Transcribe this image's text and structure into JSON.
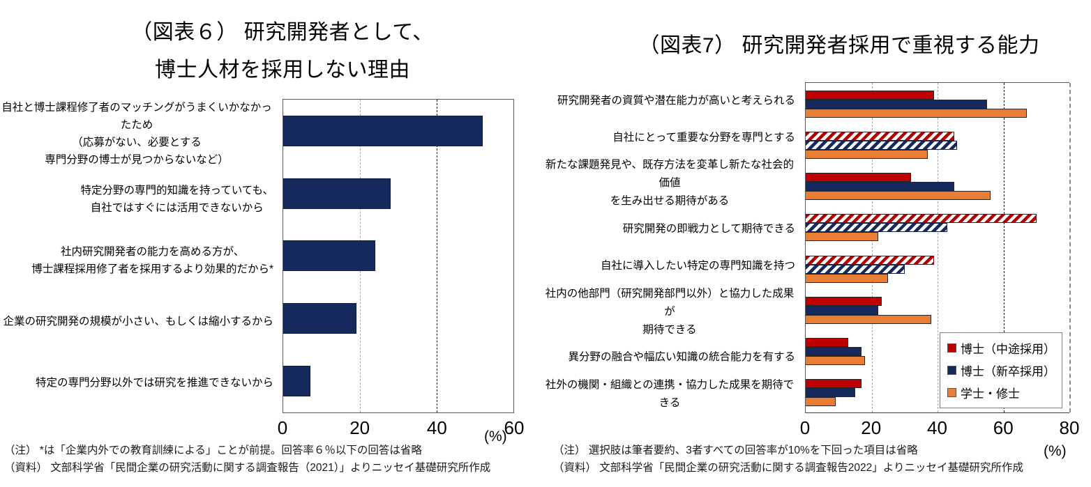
{
  "left_chart": {
    "title_line1": "（図表６） 研究開発者として、",
    "title_line2": "博士人材を採用しない理由",
    "unit_label": "(%)",
    "note": "（注） *は「企業内外での教育訓練による」ことが前提。回答率６％以下の回答は省略",
    "source": "（資料） 文部科学省「民間企業の研究活動に関する調査報告（2021）」よりニッセイ基礎研究所作成"
  },
  "right_chart": {
    "title": "（図表7） 研究開発者採用で重視する能力",
    "unit_label": "(%)",
    "note": "（注） 選択肢は筆者要約、3者すべての回答率が10%を下回った項目は省略",
    "source": "（資料） 文部科学省「民間企業の研究活動に関する調査報告2022」よりニッセイ基礎研究所作成"
  },
  "chart_data": [
    {
      "type": "bar",
      "orientation": "horizontal",
      "title": "（図表６）研究開発者として、博士人材を採用しない理由",
      "categories": [
        "自社と博士課程修了者のマッチングがうまくいかなかったため（応募がない、必要とする専門分野の博士が見つからないなど）",
        "特定分野の専門的知識を持っていても、自社ではすぐには活用できないから",
        "社内研究開発者の能力を高める方が、博士課程採用修了者を採用するより効果的だから*",
        "企業の研究開発の規模が小さい、もしくは縮小するから",
        "特定の専門分野以外では研究を推進できないから"
      ],
      "category_lines": [
        [
          "自社と博士課程修了者のマッチングがうまくいかなかったため",
          "（応募がない、必要とする",
          "専門分野の博士が見つからないなど）"
        ],
        [
          "特定分野の専門的知識を持っていても、",
          "自社ではすぐには活用できないから"
        ],
        [
          "社内研究開発者の能力を高める方が、",
          "博士課程採用修了者を採用するより効果的だから*"
        ],
        [
          "企業の研究開発の規模が小さい、もしくは縮小するから"
        ],
        [
          "特定の専門分野以外では研究を推進できないから"
        ]
      ],
      "values": [
        52,
        28,
        24,
        19,
        7
      ],
      "bar_color": "#16295c",
      "xlabel": "(%)",
      "xlim": [
        0,
        60
      ],
      "xticks": [
        0,
        20,
        40,
        60
      ],
      "gridlines": [
        {
          "x": 20,
          "style": "gray"
        },
        {
          "x": 40,
          "style": "black"
        }
      ],
      "grid": true,
      "legend_position": "none"
    },
    {
      "type": "bar",
      "orientation": "horizontal",
      "title": "（図表7）研究開発者採用で重視する能力",
      "categories": [
        "研究開発者の資質や潜在能力が高いと考えられる",
        "自社にとって重要な分野を専門とする",
        "新たな課題発見や、既存方法を変革し新たな社会的価値を生み出せる期待がある",
        "研究開発の即戦力として期待できる",
        "自社に導入したい特定の専門知識を持つ",
        "社内の他部門（研究開発部門以外）と協力した成果が期待できる",
        "異分野の融合や幅広い知識の統合能力を有する",
        "社外の機関・組織との連携・協力した成果を期待できる"
      ],
      "category_lines": [
        [
          "研究開発者の資質や潜在能力が高いと考えられる"
        ],
        [
          "自社にとって重要な分野を専門とする"
        ],
        [
          "新たな課題発見や、既存方法を変革し新たな社会的価値",
          "を生み出せる期待がある"
        ],
        [
          "研究開発の即戦力として期待できる"
        ],
        [
          "自社に導入したい特定の専門知識を持つ"
        ],
        [
          "社内の他部門（研究開発部門以外）と協力した成果が",
          "期待できる"
        ],
        [
          "異分野の融合や幅広い知識の統合能力を有する"
        ],
        [
          "社外の機関・組織との連携・協力した成果を期待できる"
        ]
      ],
      "series": [
        {
          "name": "博士（中途採用）",
          "color": "#c00000",
          "values": [
            39,
            45,
            32,
            70,
            39,
            23,
            13,
            17
          ],
          "hatched": [
            false,
            true,
            false,
            true,
            true,
            false,
            false,
            false
          ]
        },
        {
          "name": "博士（新卒採用）",
          "color": "#16295c",
          "values": [
            55,
            46,
            45,
            43,
            30,
            22,
            17,
            15
          ],
          "hatched": [
            false,
            true,
            false,
            true,
            true,
            false,
            false,
            false
          ]
        },
        {
          "name": "学士・修士",
          "color": "#e87d33",
          "values": [
            67,
            37,
            56,
            22,
            25,
            38,
            18,
            9
          ],
          "hatched": [
            false,
            false,
            false,
            false,
            false,
            false,
            false,
            false
          ]
        }
      ],
      "xlabel": "(%)",
      "xlim": [
        0,
        80
      ],
      "xticks": [
        0,
        20,
        40,
        60,
        80
      ],
      "gridlines": [
        {
          "x": 20,
          "style": "gray"
        },
        {
          "x": 40,
          "style": "gray"
        },
        {
          "x": 60,
          "style": "black"
        },
        {
          "x": 80,
          "style": "gray-edge"
        }
      ],
      "grid": true,
      "legend_position": "inside-lower-right"
    }
  ]
}
